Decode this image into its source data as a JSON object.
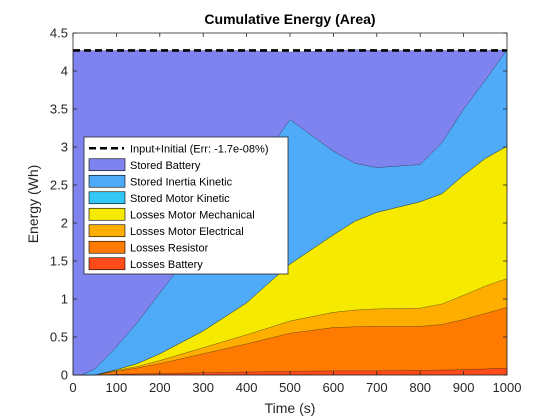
{
  "chart_data": {
    "type": "area",
    "title": "Cumulative Energy (Area)",
    "xlabel": "Time (s)",
    "ylabel": "Energy (Wh)",
    "xlim": [
      0,
      1000
    ],
    "ylim": [
      0,
      4.5
    ],
    "xticks": [
      0,
      100,
      200,
      300,
      400,
      500,
      600,
      700,
      800,
      900,
      1000
    ],
    "yticks": [
      0,
      0.5,
      1,
      1.5,
      2,
      2.5,
      3,
      3.5,
      4,
      4.5
    ],
    "ytick_labels": [
      "0",
      "0.5",
      "1",
      "1.5",
      "2",
      "2.5",
      "3",
      "3.5",
      "4",
      "4.5"
    ],
    "grid": false,
    "legend_placement": "center-left",
    "x": [
      0,
      20,
      50,
      100,
      150,
      200,
      300,
      400,
      500,
      600,
      650,
      700,
      800,
      850,
      900,
      950,
      1000
    ],
    "stack_order": [
      "Losses Battery",
      "Losses Resistor",
      "Losses Motor Electrical",
      "Losses Motor Mechanical",
      "Stored Motor Kinetic",
      "Stored Inertia Kinetic",
      "Stored Battery"
    ],
    "series": [
      {
        "name": "Losses Battery",
        "color": "#ff4a1a",
        "values": [
          0,
          0,
          0,
          0.01,
          0.015,
          0.02,
          0.03,
          0.04,
          0.05,
          0.055,
          0.055,
          0.055,
          0.06,
          0.065,
          0.07,
          0.08,
          0.09
        ]
      },
      {
        "name": "Losses Resistor",
        "color": "#ff7a00",
        "values": [
          0,
          0,
          0,
          0.04,
          0.08,
          0.13,
          0.25,
          0.37,
          0.5,
          0.57,
          0.58,
          0.585,
          0.58,
          0.6,
          0.66,
          0.73,
          0.8
        ]
      },
      {
        "name": "Losses Motor Electrical",
        "color": "#ffae00",
        "values": [
          0,
          0,
          0,
          0.01,
          0.02,
          0.04,
          0.08,
          0.12,
          0.16,
          0.2,
          0.22,
          0.23,
          0.24,
          0.27,
          0.32,
          0.36,
          0.38
        ]
      },
      {
        "name": "Losses Motor Mechanical",
        "color": "#f5ea00",
        "values": [
          0,
          0,
          0,
          0.01,
          0.04,
          0.09,
          0.22,
          0.42,
          0.75,
          1.02,
          1.17,
          1.27,
          1.4,
          1.45,
          1.58,
          1.68,
          1.74
        ]
      },
      {
        "name": "Stored Motor Kinetic",
        "color": "#33c7f5",
        "values": [
          0,
          0,
          0,
          0,
          0,
          0,
          0,
          0,
          0,
          0,
          0,
          0,
          0,
          0,
          0,
          0,
          0
        ]
      },
      {
        "name": "Stored Inertia Kinetic",
        "color": "#4faaf7",
        "values": [
          0,
          0,
          0.08,
          0.3,
          0.55,
          0.8,
          1.25,
          1.6,
          1.9,
          1.1,
          0.76,
          0.59,
          0.49,
          0.67,
          0.87,
          1.03,
          1.27
        ]
      },
      {
        "name": "Stored Battery",
        "color": "#7f83f0",
        "values": [
          4.27,
          4.27,
          4.19,
          3.9,
          3.57,
          3.19,
          2.44,
          1.72,
          0.89,
          1.325,
          1.495,
          1.54,
          1.5,
          1.215,
          0.77,
          0.39,
          0.0
        ]
      }
    ],
    "reference_line": {
      "name": "Input+Initial (Err: -1.7e-08%)",
      "value": 4.27,
      "color": "#000000",
      "style": "dashed"
    }
  }
}
